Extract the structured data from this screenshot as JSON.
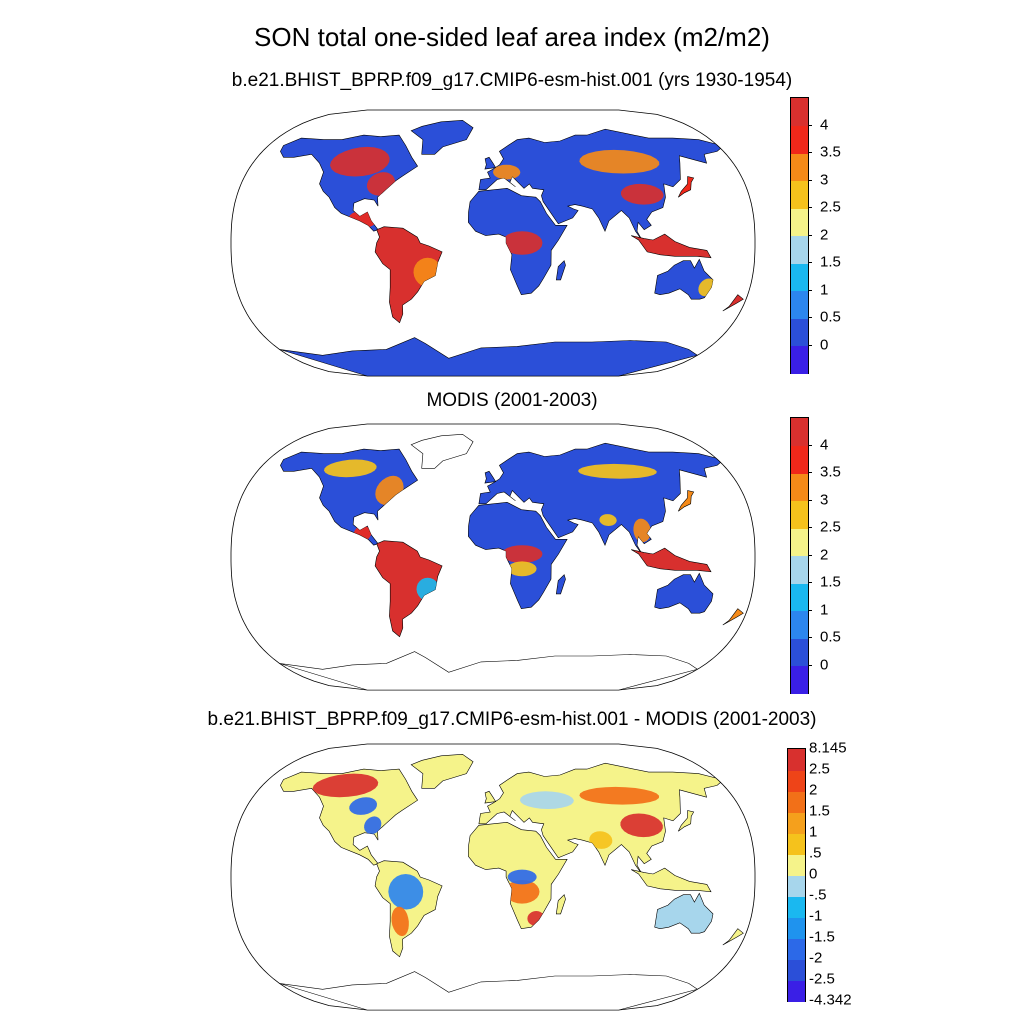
{
  "main_title": "SON total one-sided leaf area index (m2/m2)",
  "panels": [
    {
      "title": "b.e21.BHIST_BPRP.f09_g17.CMIP6-esm-hist.001 (yrs 1930-1954)",
      "colorbar": {
        "colors": [
          "#3a1fe6",
          "#2b4fd8",
          "#2c86ee",
          "#1ab8f0",
          "#a7d6ec",
          "#f5f38a",
          "#f5c21c",
          "#f58a18",
          "#f0281a",
          "#d8302e"
        ],
        "labels": [
          "0",
          "0.5",
          "1",
          "1.5",
          "2",
          "2.5",
          "3",
          "3.5",
          "4"
        ]
      }
    },
    {
      "title": "MODIS (2001-2003)",
      "colorbar": {
        "colors": [
          "#3a1fe6",
          "#2b4fd8",
          "#2c86ee",
          "#1ab8f0",
          "#a7d6ec",
          "#f5f38a",
          "#f5c21c",
          "#f58a18",
          "#f0281a",
          "#d8302e"
        ],
        "labels": [
          "0",
          "0.5",
          "1",
          "1.5",
          "2",
          "2.5",
          "3",
          "3.5",
          "4"
        ]
      }
    },
    {
      "title": "b.e21.BHIST_BPRP.f09_g17.CMIP6-esm-hist.001 - MODIS (2001-2003)",
      "colorbar": {
        "colors": [
          "#3a1fe6",
          "#2b4fd8",
          "#2c69e8",
          "#1f93ee",
          "#1ab8f0",
          "#a7d6ec",
          "#f5f38a",
          "#f5c21c",
          "#f5a01c",
          "#f27018",
          "#ee4418",
          "#d8302e"
        ],
        "labels": [
          "-4.342",
          "-2.5",
          "-2",
          "-1.5",
          "-1",
          "-.5",
          "0",
          ".5",
          "1",
          "1.5",
          "2",
          "2.5",
          "8.145"
        ]
      }
    }
  ]
}
